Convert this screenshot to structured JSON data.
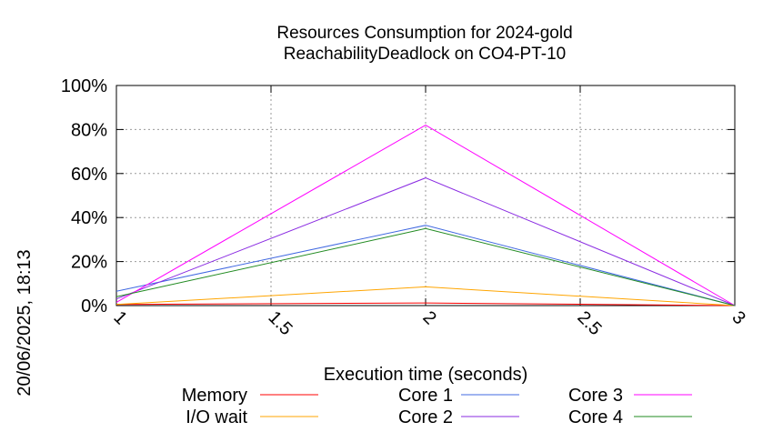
{
  "side_label": "20/06/2025, 18:13",
  "chart_data": {
    "type": "line",
    "title": "Resources Consumption for 2024-gold",
    "subtitle": "ReachabilityDeadlock on CO4-PT-10",
    "xlabel": "Execution time (seconds)",
    "ylabel": "",
    "xlim": [
      1,
      3
    ],
    "ylim": [
      0,
      100
    ],
    "xticks": [
      1,
      1.5,
      2,
      2.5,
      3
    ],
    "xtick_labels": [
      "1",
      "1.5",
      "2",
      "2.5",
      "3"
    ],
    "yticks": [
      0,
      20,
      40,
      60,
      80,
      100
    ],
    "ytick_labels": [
      "0%",
      "20%",
      "40%",
      "60%",
      "80%",
      "100%"
    ],
    "grid": true,
    "legend_position": "bottom",
    "x": [
      1,
      2,
      3
    ],
    "series": [
      {
        "name": "Memory",
        "color": "#ff0000",
        "values": [
          0.5,
          1.2,
          0
        ]
      },
      {
        "name": "I/O wait",
        "color": "#ffa500",
        "values": [
          0.5,
          8.5,
          0
        ]
      },
      {
        "name": "Core 1",
        "color": "#4169e1",
        "values": [
          6.5,
          36.5,
          0
        ]
      },
      {
        "name": "Core 2",
        "color": "#8a2be2",
        "values": [
          3.0,
          58.0,
          0
        ]
      },
      {
        "name": "Core 3",
        "color": "#ff00ff",
        "values": [
          1.5,
          82.0,
          0
        ]
      },
      {
        "name": "Core 4",
        "color": "#228b22",
        "values": [
          4.0,
          35.0,
          0
        ]
      }
    ]
  }
}
